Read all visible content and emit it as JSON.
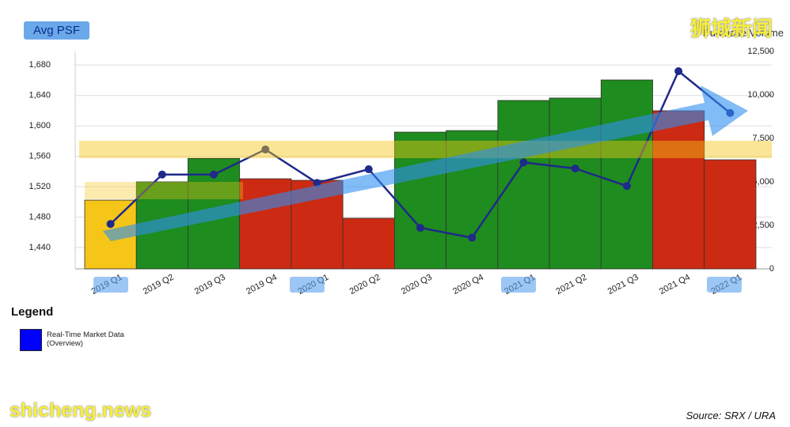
{
  "chart_data": {
    "type": "combo",
    "ylabel": "Avg PSF",
    "y2label": "Purchase Volume",
    "categories": [
      "2019 Q1",
      "2019 Q2",
      "2019 Q3",
      "2019 Q4",
      "2020 Q1",
      "2020 Q2",
      "2020 Q3",
      "2020 Q4",
      "2021 Q1",
      "2021 Q2",
      "2021 Q3",
      "2021 Q4",
      "2022 Q1"
    ],
    "series": [
      {
        "type": "bar",
        "axis": "y2",
        "colors": [
          "#f5c518",
          "#1e8c1e",
          "#1e8c1e",
          "#cc2a12",
          "#cc2a12",
          "#cc2a12",
          "#1e8c1e",
          "#1e8c1e",
          "#1e8c1e",
          "#1e8c1e",
          "#1e8c1e",
          "#cc2a12",
          "#cc2a12"
        ],
        "values": [
          3950,
          5000,
          6350,
          5180,
          5090,
          2910,
          7860,
          7950,
          9680,
          9820,
          10860,
          9090,
          6270
        ]
      },
      {
        "type": "line",
        "color": "#1f2a8a",
        "values": [
          1471,
          1536,
          1536,
          1569,
          1525,
          1543,
          1466,
          1453,
          1552,
          1544,
          1521,
          1672,
          1617
        ]
      }
    ],
    "ylim": [
      1412,
      1698
    ],
    "yticks": [
      {
        "value": 1440,
        "label": "1,440"
      },
      {
        "value": 1480,
        "label": "1,480"
      },
      {
        "value": 1520,
        "label": "1,520"
      },
      {
        "value": 1560,
        "label": "1,560"
      },
      {
        "value": 1600,
        "label": "1,600"
      },
      {
        "value": 1640,
        "label": "1,640"
      },
      {
        "value": 1680,
        "label": "1,680"
      }
    ],
    "y2lim": [
      0,
      12500
    ],
    "y2ticks": [
      0,
      {
        "value": 2500,
        "label": "2,500"
      },
      {
        "value": 5000,
        "label": "5,000"
      },
      {
        "value": 7500,
        "label": "7,500"
      },
      {
        "value": 10000,
        "label": "10,000"
      },
      {
        "value": 12500,
        "label": "12,500"
      }
    ],
    "grid": true,
    "legend": {
      "title": "Legend",
      "label": "Real-Time Market Data (Overview)",
      "color": "#0000ff"
    },
    "source": "Source: SRX / URA"
  },
  "watermarks": {
    "top": "狮城新闻",
    "bottom": "shicheng.news"
  }
}
